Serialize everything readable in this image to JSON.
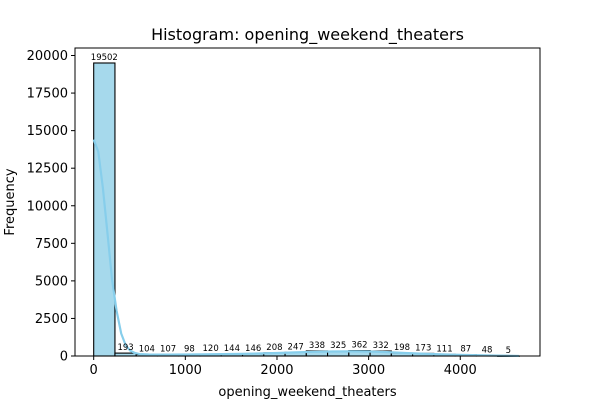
{
  "chart_data": {
    "type": "bar",
    "title": "Histogram: opening_weekend_theaters",
    "xlabel": "opening_weekend_theaters",
    "ylabel": "Frequency",
    "xlim": [
      -204,
      4870
    ],
    "ylim": [
      0,
      20500
    ],
    "x_ticks": [
      0,
      1000,
      2000,
      3000,
      4000
    ],
    "x_tick_labels": [
      "0",
      "1000",
      "2000",
      "3000",
      "4000"
    ],
    "y_ticks": [
      0,
      2500,
      5000,
      7500,
      10000,
      12500,
      15000,
      17500,
      20000
    ],
    "y_tick_labels": [
      "0",
      "2500",
      "5000",
      "7500",
      "10000",
      "12500",
      "15000",
      "17500",
      "20000"
    ],
    "bin_start": 0,
    "bin_width": 232,
    "counts": [
      19502,
      193,
      104,
      107,
      98,
      120,
      144,
      146,
      208,
      247,
      338,
      325,
      362,
      332,
      198,
      173,
      111,
      87,
      48,
      5
    ],
    "bar_color": "#a6d9ec",
    "kde_color": "#87ceeb",
    "kde": {
      "x": [
        0,
        50,
        100,
        150,
        200,
        250,
        300,
        350,
        400,
        450,
        500,
        600,
        700,
        800,
        1000,
        1200,
        1400,
        1600,
        1800,
        2000,
        2200,
        2400,
        2600,
        2800,
        3000,
        3200,
        3400,
        3600,
        3800,
        4000,
        4200,
        4400,
        4640
      ],
      "y": [
        14400,
        13600,
        11200,
        8200,
        5100,
        3000,
        1500,
        700,
        350,
        200,
        130,
        100,
        95,
        95,
        100,
        110,
        125,
        140,
        170,
        200,
        240,
        280,
        300,
        310,
        300,
        260,
        200,
        150,
        110,
        80,
        50,
        25,
        5
      ]
    }
  }
}
